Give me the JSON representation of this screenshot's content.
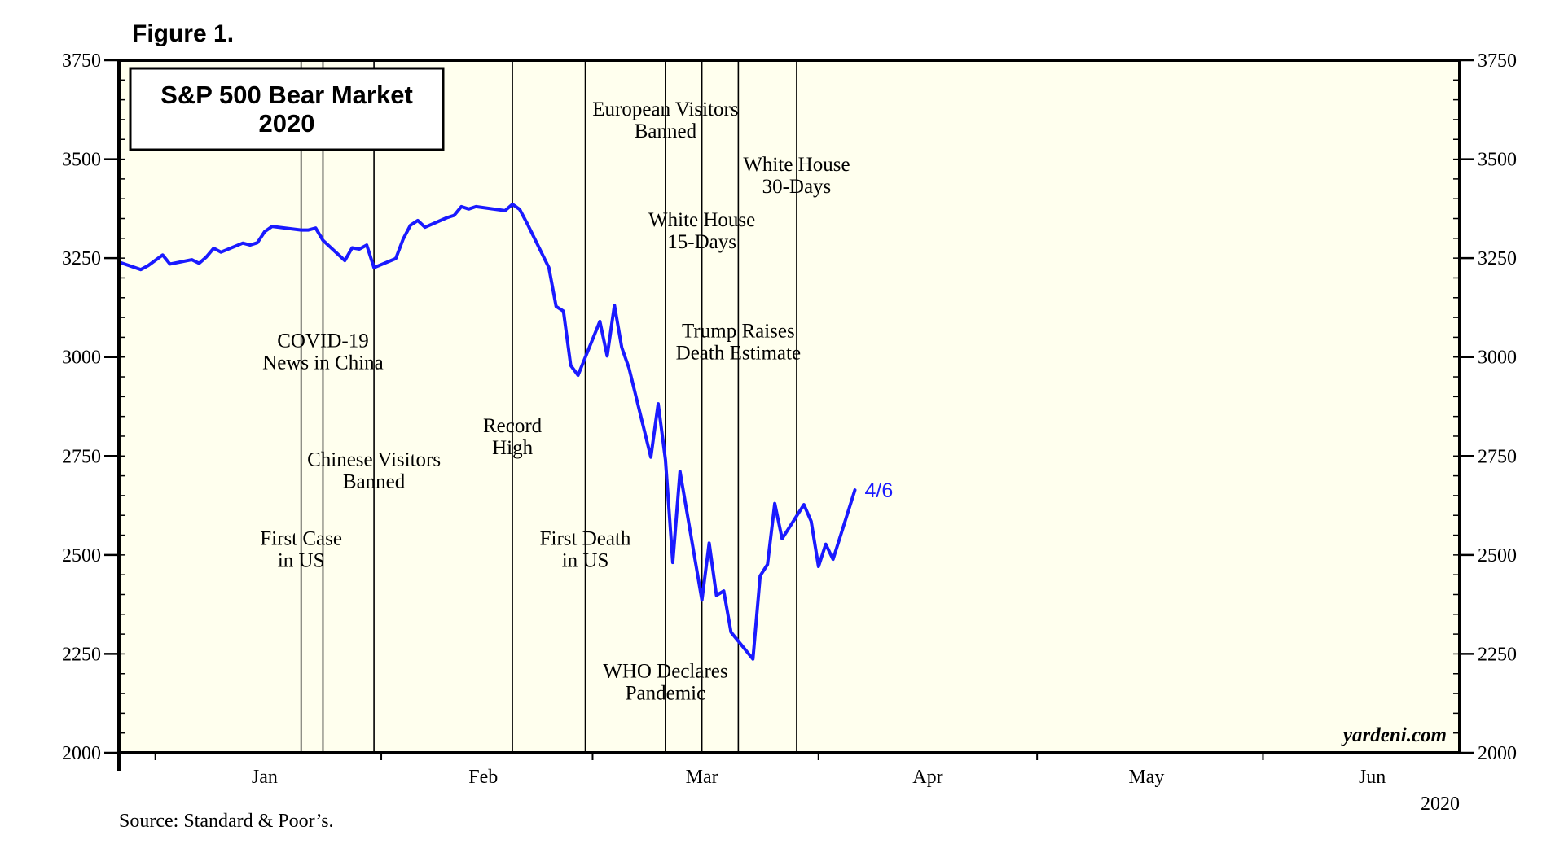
{
  "figure_label": "Figure 1.",
  "source": "Source: Standard & Poor’s.",
  "watermark": "yardeni.com",
  "colors": {
    "plot_bg": "#ffffee",
    "line": "#1a1aff",
    "axis": "#000000"
  },
  "chart_data": {
    "type": "line",
    "title": "S&P 500 Bear Market",
    "subtitle": "2020",
    "ylim": [
      2000,
      3750
    ],
    "yticks": [
      2000,
      2250,
      2500,
      2750,
      3000,
      3250,
      3500,
      3750
    ],
    "ytick_labels": [
      "2000",
      "2250",
      "2500",
      "2750",
      "3000",
      "3250",
      "3500",
      "3750"
    ],
    "xlim": [
      "2019-12-27",
      "2020-06-28"
    ],
    "x_month_labels": [
      "Jan",
      "Feb",
      "Mar",
      "Apr",
      "May",
      "Jun"
    ],
    "x_year_label": "2020",
    "grid": false,
    "last_point_label": "4/6",
    "series": [
      {
        "x": [
          "2019-12-27",
          "2019-12-30",
          "2019-12-31",
          "2020-01-02",
          "2020-01-03",
          "2020-01-06",
          "2020-01-07",
          "2020-01-08",
          "2020-01-09",
          "2020-01-10",
          "2020-01-13",
          "2020-01-14",
          "2020-01-15",
          "2020-01-16",
          "2020-01-17",
          "2020-01-21",
          "2020-01-22",
          "2020-01-23",
          "2020-01-24",
          "2020-01-27",
          "2020-01-28",
          "2020-01-29",
          "2020-01-30",
          "2020-01-31",
          "2020-02-03",
          "2020-02-04",
          "2020-02-05",
          "2020-02-06",
          "2020-02-07",
          "2020-02-10",
          "2020-02-11",
          "2020-02-12",
          "2020-02-13",
          "2020-02-14",
          "2020-02-18",
          "2020-02-19",
          "2020-02-20",
          "2020-02-21",
          "2020-02-24",
          "2020-02-25",
          "2020-02-26",
          "2020-02-27",
          "2020-02-28",
          "2020-03-02",
          "2020-03-03",
          "2020-03-04",
          "2020-03-05",
          "2020-03-06",
          "2020-03-09",
          "2020-03-10",
          "2020-03-11",
          "2020-03-12",
          "2020-03-13",
          "2020-03-16",
          "2020-03-17",
          "2020-03-18",
          "2020-03-19",
          "2020-03-20",
          "2020-03-23",
          "2020-03-24",
          "2020-03-25",
          "2020-03-26",
          "2020-03-27",
          "2020-03-30",
          "2020-03-31",
          "2020-04-01",
          "2020-04-02",
          "2020-04-03",
          "2020-04-06"
        ],
        "values": [
          3240,
          3221,
          3231,
          3258,
          3235,
          3246,
          3237,
          3253,
          3275,
          3265,
          3288,
          3283,
          3289,
          3317,
          3330,
          3321,
          3321,
          3326,
          3295,
          3244,
          3276,
          3273,
          3283,
          3226,
          3249,
          3298,
          3333,
          3345,
          3328,
          3352,
          3358,
          3380,
          3374,
          3380,
          3370,
          3386,
          3373,
          3338,
          3226,
          3128,
          3116,
          2979,
          2954,
          3090,
          3003,
          3131,
          3024,
          2972,
          2747,
          2882,
          2741,
          2481,
          2711,
          2386,
          2530,
          2398,
          2409,
          2305,
          2237,
          2447,
          2476,
          2630,
          2541,
          2627,
          2585,
          2471,
          2527,
          2489,
          2664
        ]
      }
    ],
    "events": [
      {
        "date": "2020-01-21",
        "label": [
          "First Case",
          "in US"
        ],
        "y": 2525
      },
      {
        "date": "2020-01-24",
        "label": [
          "COVID-19",
          "News in China"
        ],
        "y": 3025
      },
      {
        "date": "2020-01-31",
        "label": [
          "Chinese Visitors",
          "Banned"
        ],
        "y": 2725
      },
      {
        "date": "2020-02-19",
        "label": [
          "Record",
          "High"
        ],
        "y": 2810
      },
      {
        "date": "2020-02-29",
        "label": [
          "First Death",
          "in US"
        ],
        "y": 2525
      },
      {
        "date": "2020-03-11",
        "label": [
          "European Visitors",
          "Banned"
        ],
        "y": 3610
      },
      {
        "date": "2020-03-11",
        "label": [
          "WHO Declares",
          "Pandemic"
        ],
        "y": 2190
      },
      {
        "date": "2020-03-16",
        "label": [
          "White House",
          "15-Days"
        ],
        "y": 3330
      },
      {
        "date": "2020-03-21",
        "label": [
          "Trump Raises",
          "Death Estimate"
        ],
        "y": 3050
      },
      {
        "date": "2020-03-29",
        "label": [
          "White House",
          "30-Days"
        ],
        "y": 3470
      }
    ]
  }
}
